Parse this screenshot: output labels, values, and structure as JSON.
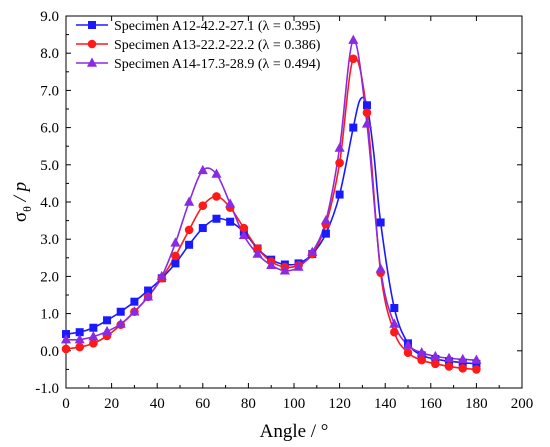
{
  "chart_data": {
    "type": "line",
    "title": "",
    "xlabel": "Angle / °",
    "ylabel_main": "σ",
    "ylabel_sub": "θ",
    "ylabel_rest": " / p",
    "xlim": [
      0,
      200
    ],
    "ylim": [
      -1.0,
      9.0
    ],
    "x_ticks": [
      0,
      20,
      40,
      60,
      80,
      100,
      120,
      140,
      160,
      180,
      200
    ],
    "y_ticks": [
      -1.0,
      0.0,
      1.0,
      2.0,
      3.0,
      4.0,
      5.0,
      6.0,
      7.0,
      8.0,
      9.0
    ],
    "x_tick_labels": [
      "0",
      "20",
      "40",
      "60",
      "80",
      "100",
      "120",
      "140",
      "160",
      "180",
      "200"
    ],
    "y_tick_labels": [
      "-1.0",
      "0.0",
      "1.0",
      "2.0",
      "3.0",
      "4.0",
      "5.0",
      "6.0",
      "7.0",
      "8.0",
      "9.0"
    ],
    "grid": false,
    "legend_position": "top-left",
    "x": [
      0,
      6,
      12,
      18,
      24,
      30,
      36,
      42,
      48,
      54,
      60,
      66,
      72,
      78,
      84,
      90,
      96,
      102,
      108,
      114,
      120,
      126,
      132,
      138,
      144,
      150,
      156,
      162,
      168,
      174,
      180
    ],
    "series": [
      {
        "name": "Specimen A12-42.2-27.1 (λ = 0.395)",
        "color": "#1a1aff",
        "marker": "square",
        "values": [
          0.45,
          0.5,
          0.62,
          0.82,
          1.05,
          1.32,
          1.62,
          1.95,
          2.35,
          2.85,
          3.3,
          3.55,
          3.47,
          3.2,
          2.75,
          2.45,
          2.32,
          2.35,
          2.6,
          3.15,
          4.2,
          6.0,
          6.6,
          3.45,
          1.15,
          0.2,
          -0.12,
          -0.22,
          -0.28,
          -0.32,
          -0.35
        ],
        "curve": [
          [
            0,
            0.45
          ],
          [
            6,
            0.5
          ],
          [
            12,
            0.62
          ],
          [
            18,
            0.82
          ],
          [
            24,
            1.05
          ],
          [
            30,
            1.32
          ],
          [
            36,
            1.62
          ],
          [
            42,
            1.95
          ],
          [
            48,
            2.35
          ],
          [
            54,
            2.85
          ],
          [
            60,
            3.3
          ],
          [
            66,
            3.55
          ],
          [
            72,
            3.47
          ],
          [
            78,
            3.2
          ],
          [
            84,
            2.75
          ],
          [
            90,
            2.45
          ],
          [
            96,
            2.32
          ],
          [
            102,
            2.35
          ],
          [
            108,
            2.6
          ],
          [
            114,
            3.15
          ],
          [
            120,
            4.2
          ],
          [
            126,
            6.0
          ],
          [
            129,
            6.75
          ],
          [
            132,
            6.6
          ],
          [
            135,
            5.3
          ],
          [
            138,
            3.45
          ],
          [
            144,
            1.15
          ],
          [
            150,
            0.2
          ],
          [
            156,
            -0.12
          ],
          [
            162,
            -0.22
          ],
          [
            168,
            -0.28
          ],
          [
            174,
            -0.32
          ],
          [
            180,
            -0.35
          ]
        ]
      },
      {
        "name": "Specimen A13-22.2-22.2 (λ = 0.386)",
        "color": "#ff1a1a",
        "marker": "circle",
        "values": [
          0.05,
          0.1,
          0.2,
          0.4,
          0.7,
          1.05,
          1.45,
          1.95,
          2.55,
          3.25,
          3.9,
          4.15,
          3.85,
          3.3,
          2.75,
          2.4,
          2.25,
          2.3,
          2.6,
          3.4,
          5.05,
          7.85,
          6.4,
          2.1,
          0.5,
          -0.05,
          -0.25,
          -0.35,
          -0.42,
          -0.47,
          -0.5
        ],
        "curve": [
          [
            0,
            0.05
          ],
          [
            6,
            0.1
          ],
          [
            12,
            0.2
          ],
          [
            18,
            0.4
          ],
          [
            24,
            0.7
          ],
          [
            30,
            1.05
          ],
          [
            36,
            1.45
          ],
          [
            42,
            1.95
          ],
          [
            48,
            2.55
          ],
          [
            54,
            3.25
          ],
          [
            60,
            3.9
          ],
          [
            66,
            4.15
          ],
          [
            72,
            3.85
          ],
          [
            78,
            3.3
          ],
          [
            84,
            2.75
          ],
          [
            90,
            2.4
          ],
          [
            96,
            2.25
          ],
          [
            102,
            2.3
          ],
          [
            108,
            2.6
          ],
          [
            114,
            3.4
          ],
          [
            120,
            5.05
          ],
          [
            126,
            7.85
          ],
          [
            132,
            6.4
          ],
          [
            138,
            2.1
          ],
          [
            144,
            0.5
          ],
          [
            150,
            -0.05
          ],
          [
            156,
            -0.25
          ],
          [
            162,
            -0.35
          ],
          [
            168,
            -0.42
          ],
          [
            174,
            -0.47
          ],
          [
            180,
            -0.5
          ]
        ]
      },
      {
        "name": "Specimen A14-17.3-28.9 (λ = 0.494)",
        "color": "#8a2be2",
        "marker": "triangle",
        "values": [
          0.3,
          0.3,
          0.38,
          0.52,
          0.72,
          1.05,
          1.45,
          2.0,
          2.9,
          4.0,
          4.85,
          4.75,
          3.95,
          3.1,
          2.6,
          2.3,
          2.15,
          2.25,
          2.65,
          3.5,
          5.45,
          8.35,
          6.1,
          2.2,
          0.72,
          0.15,
          -0.05,
          -0.15,
          -0.2,
          -0.23,
          -0.25
        ],
        "curve": [
          [
            0,
            0.3
          ],
          [
            6,
            0.3
          ],
          [
            12,
            0.38
          ],
          [
            18,
            0.52
          ],
          [
            24,
            0.72
          ],
          [
            30,
            1.05
          ],
          [
            36,
            1.45
          ],
          [
            42,
            2.0
          ],
          [
            48,
            2.9
          ],
          [
            54,
            4.0
          ],
          [
            60,
            4.85
          ],
          [
            66,
            4.75
          ],
          [
            72,
            3.95
          ],
          [
            78,
            3.1
          ],
          [
            84,
            2.6
          ],
          [
            90,
            2.3
          ],
          [
            96,
            2.15
          ],
          [
            102,
            2.25
          ],
          [
            108,
            2.65
          ],
          [
            114,
            3.5
          ],
          [
            120,
            5.45
          ],
          [
            126,
            8.35
          ],
          [
            132,
            6.1
          ],
          [
            138,
            2.2
          ],
          [
            144,
            0.72
          ],
          [
            150,
            0.15
          ],
          [
            156,
            -0.05
          ],
          [
            162,
            -0.15
          ],
          [
            168,
            -0.2
          ],
          [
            174,
            -0.23
          ],
          [
            180,
            -0.25
          ]
        ]
      }
    ]
  }
}
